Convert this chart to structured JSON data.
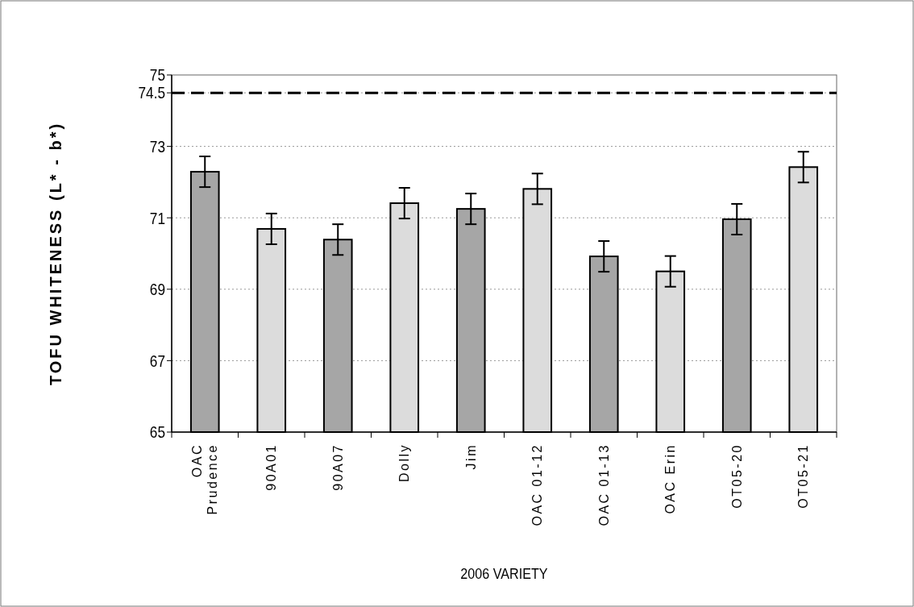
{
  "chart_data": {
    "type": "bar",
    "categories": [
      "OAC Prudence",
      "90A01",
      "90A07",
      "Dolly",
      "Jim",
      "OAC 01-12",
      "OAC 01-13",
      "OAC Erin",
      "OT05-20",
      "OT05-21"
    ],
    "values": [
      72.29,
      70.69,
      70.39,
      71.41,
      71.25,
      71.81,
      69.92,
      69.5,
      70.96,
      72.42
    ],
    "errors": [
      0.43,
      0.43,
      0.43,
      0.43,
      0.43,
      0.43,
      0.43,
      0.43,
      0.43,
      0.43
    ],
    "colors": [
      "#a6a6a6",
      "#dcdcdc",
      "#a6a6a6",
      "#dcdcdc",
      "#a6a6a6",
      "#dcdcdc",
      "#a6a6a6",
      "#dcdcdc",
      "#a6a6a6",
      "#dcdcdc"
    ],
    "xlabel": "2006 VARIETY",
    "ylabel": "TOFU WHITENESS (L* - b*)",
    "ylim": [
      65,
      75
    ],
    "yticks": [
      65,
      67,
      69,
      71,
      73,
      74.5,
      75
    ],
    "ref_lines": [
      {
        "axis": "y",
        "value": 74.5,
        "color": "#000000",
        "line_style": "dashed"
      }
    ],
    "grid": "y"
  }
}
